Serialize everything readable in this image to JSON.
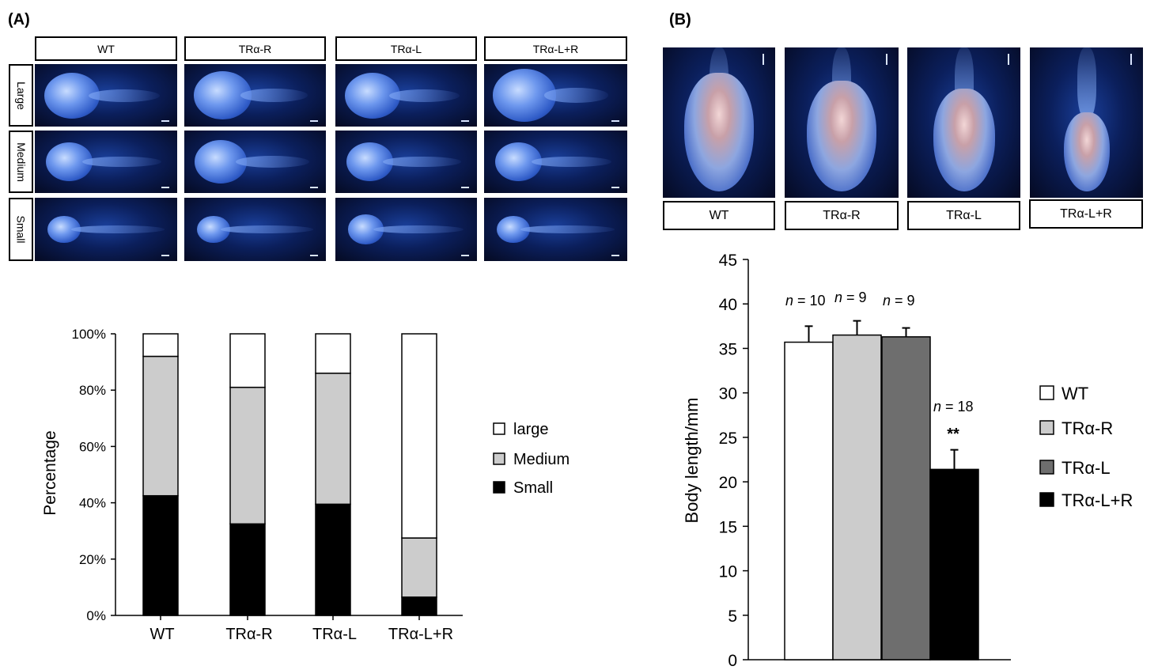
{
  "panelA": {
    "label": "(A)",
    "columns": [
      "WT",
      "TRα-R",
      "TRα-L",
      "TRα-L+R"
    ],
    "rows": [
      "Large",
      "Medium",
      "Small"
    ]
  },
  "panelB": {
    "label": "(B)",
    "columns": [
      "WT",
      "TRα-R",
      "TRα-L",
      "TRα-L+R"
    ]
  },
  "colors": {
    "white": "#ffffff",
    "lightgray": "#cccccc",
    "darkgray": "#6e6e6e",
    "black": "#000000"
  },
  "chart_data": [
    {
      "type": "bar",
      "stacked": true,
      "title": "",
      "xlabel": "",
      "ylabel": "Percentage",
      "ylim": [
        0,
        100
      ],
      "yticks": [
        "0%",
        "20%",
        "40%",
        "60%",
        "80%",
        "100%"
      ],
      "categories": [
        "WT",
        "TRα-R",
        "TRα-L",
        "TRα-L+R"
      ],
      "series": [
        {
          "name": "Small",
          "values": [
            42.5,
            32.5,
            39.5,
            6.5
          ],
          "color": "#000000"
        },
        {
          "name": "Medium",
          "values": [
            49.5,
            48.5,
            46.5,
            21
          ],
          "color": "#cccccc"
        },
        {
          "name": "large",
          "values": [
            8,
            19,
            14,
            72.5
          ],
          "color": "#ffffff"
        }
      ],
      "legend": [
        "large",
        "Medium",
        "Small"
      ],
      "legend_position": "right"
    },
    {
      "type": "bar",
      "title": "",
      "xlabel": "",
      "ylabel": "Body length/mm",
      "ylim": [
        0,
        45
      ],
      "yticks": [
        "0",
        "5",
        "10",
        "15",
        "20",
        "25",
        "30",
        "35",
        "40",
        "45"
      ],
      "categories": [
        "WT",
        "TRα-R",
        "TRα-L",
        "TRα-L+R"
      ],
      "values": [
        35.7,
        36.5,
        36.3,
        21.4
      ],
      "errors": [
        1.8,
        1.6,
        1.0,
        2.2
      ],
      "colors": [
        "#ffffff",
        "#cccccc",
        "#6e6e6e",
        "#000000"
      ],
      "annotations": [
        {
          "n": "n",
          "text": " = 10"
        },
        {
          "n": "n",
          "text": " = 9"
        },
        {
          "n": "n",
          "text": " = 9"
        },
        {
          "n": "n",
          "text": " = 18",
          "significance": "**"
        }
      ],
      "legend": [
        "WT",
        "TRα-R",
        "TRα-L",
        "TRα-L+R"
      ],
      "legend_position": "right"
    }
  ]
}
